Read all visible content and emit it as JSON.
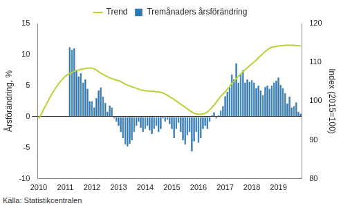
{
  "chart_data": {
    "type": "bar",
    "source": "Källa: Statistikcentralen",
    "y_label": "Årsförändring, %",
    "y2_label": "Index (2015=100)",
    "categories": [
      "2010",
      null,
      null,
      null,
      null,
      null,
      null,
      null,
      null,
      null,
      null,
      null,
      "2011",
      null,
      null,
      null,
      null,
      null,
      null,
      null,
      null,
      null,
      null,
      null,
      "2012",
      null,
      null,
      null,
      null,
      null,
      null,
      null,
      null,
      null,
      null,
      null,
      "2013",
      null,
      null,
      null,
      null,
      null,
      null,
      null,
      null,
      null,
      null,
      null,
      "2014",
      null,
      null,
      null,
      null,
      null,
      null,
      null,
      null,
      null,
      null,
      null,
      "2015",
      null,
      null,
      null,
      null,
      null,
      null,
      null,
      null,
      null,
      null,
      null,
      "2016",
      null,
      null,
      null,
      null,
      null,
      null,
      null,
      null,
      null,
      null,
      null,
      "2017",
      null,
      null,
      null,
      null,
      null,
      null,
      null,
      null,
      null,
      null,
      null,
      "2018",
      null,
      null,
      null,
      null,
      null,
      null,
      null,
      null,
      null,
      null,
      null,
      "2019",
      null,
      null,
      null,
      null,
      null,
      null,
      null,
      null,
      null,
      null
    ],
    "series": [
      {
        "name": "Trend",
        "type": "line",
        "axis": "y2",
        "color": "#b5d334",
        "marker": "none",
        "line_style": "solid",
        "values": [
          95.5,
          96.5,
          97.6,
          98.7,
          99.8,
          100.9,
          101.9,
          102.8,
          103.7,
          104.5,
          105.2,
          105.8,
          106.4,
          106.8,
          107.1,
          107.4,
          107.7,
          107.9,
          108.0,
          108.2,
          108.3,
          108.4,
          108.5,
          108.5,
          108.5,
          108.3,
          108.0,
          107.6,
          107.2,
          106.9,
          106.6,
          106.3,
          106.0,
          105.8,
          105.6,
          105.4,
          105.3,
          105.0,
          104.7,
          104.4,
          104.1,
          103.9,
          103.7,
          103.5,
          103.3,
          103.1,
          102.9,
          102.8,
          102.7,
          102.6,
          102.6,
          102.5,
          102.5,
          102.4,
          102.4,
          102.3,
          102.1,
          101.8,
          101.5,
          101.1,
          100.8,
          100.4,
          100.0,
          99.6,
          99.2,
          98.8,
          98.4,
          98.0,
          97.6,
          97.2,
          96.9,
          96.7,
          96.6,
          96.6,
          96.7,
          96.9,
          97.2,
          97.7,
          98.3,
          99.0,
          99.7,
          100.5,
          101.2,
          101.8,
          102.4,
          103.1,
          103.8,
          104.5,
          105.2,
          105.8,
          106.4,
          107.0,
          107.6,
          108.1,
          108.6,
          109.1,
          109.6,
          110.1,
          110.6,
          111.2,
          111.7,
          112.2,
          112.8,
          113.2,
          113.6,
          113.9,
          114.0,
          114.1,
          114.2,
          114.3,
          114.3,
          114.4,
          114.4,
          114.4,
          114.4,
          114.4,
          114.3,
          114.3,
          114.2
        ]
      },
      {
        "name": "Tremånaders årsförändring",
        "type": "bar",
        "axis": "y",
        "color": "#2b7bba",
        "values": [
          null,
          null,
          null,
          null,
          null,
          null,
          null,
          null,
          null,
          null,
          null,
          null,
          null,
          null,
          11.2,
          10.8,
          11.0,
          7.5,
          6.5,
          7.0,
          5.5,
          6.0,
          4.5,
          2.5,
          2.5,
          1.5,
          3.0,
          4.2,
          4.7,
          3.2,
          2.2,
          0.8,
          1.8,
          1.5,
          -0.3,
          -0.8,
          -1.5,
          -2.5,
          -3.5,
          -4.5,
          -4.8,
          -4.4,
          -3.8,
          -2.5,
          -1.5,
          -0.8,
          -1.8,
          -2.5,
          -2.0,
          -1.5,
          -2.2,
          -2.8,
          -2.0,
          -1.5,
          -2.5,
          -2.0,
          -0.3,
          -0.8,
          -0.5,
          -1.2,
          -2.0,
          -3.5,
          -2.0,
          -1.0,
          -2.5,
          -3.8,
          -4.5,
          -3.0,
          -2.5,
          -5.6,
          -4.0,
          -2.5,
          -4.2,
          -3.5,
          -2.0,
          -1.5,
          -2.0,
          -0.8,
          0.2,
          0.7,
          -0.3,
          0.2,
          1.0,
          1.7,
          3.3,
          4.0,
          4.7,
          6.8,
          6.0,
          8.6,
          5.5,
          6.8,
          7.5,
          5.5,
          6.0,
          5.6,
          5.9,
          5.5,
          4.6,
          5.0,
          4.2,
          3.5,
          4.8,
          5.0,
          4.5,
          5.0,
          5.5,
          5.8,
          6.3,
          5.1,
          4.6,
          3.8,
          2.1,
          3.2,
          1.5,
          1.7,
          2.3,
          0.8,
          0.5
        ]
      }
    ],
    "ylim": [
      -10,
      15
    ],
    "yticks": [
      -10,
      -5,
      0,
      5,
      10,
      15
    ],
    "y2lim": [
      80,
      120
    ],
    "y2ticks": [
      80,
      90,
      100,
      110,
      120
    ],
    "grid": false,
    "legend": "top"
  }
}
